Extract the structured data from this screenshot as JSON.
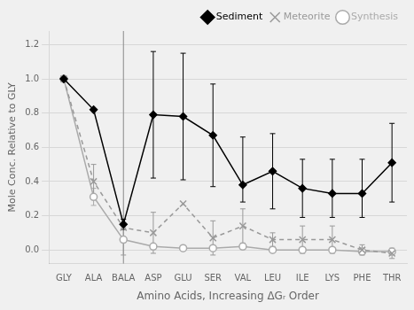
{
  "chart_data": {
    "type": "line",
    "xlabel": "Amino Acids, Increasing ΔGᵣ Order",
    "ylabel": "Mole Conc. Relative to GLY",
    "categories": [
      "GLY",
      "ALA",
      "BALA",
      "ASP",
      "GLU",
      "SER",
      "VAL",
      "LEU",
      "ILE",
      "LYS",
      "PHE",
      "THR"
    ],
    "series": [
      {
        "name": "Sediment",
        "color": "#000000",
        "marker": "diamond",
        "line_style": "solid",
        "values": [
          1.0,
          0.82,
          0.15,
          0.79,
          0.78,
          0.67,
          0.38,
          0.46,
          0.36,
          0.33,
          0.33,
          0.51
        ],
        "error_minus": [
          0.0,
          0.0,
          0.03,
          0.37,
          0.37,
          0.3,
          0.1,
          0.22,
          0.17,
          0.14,
          0.14,
          0.23
        ],
        "error_plus": [
          0.0,
          0.0,
          0.03,
          0.37,
          0.37,
          0.3,
          0.28,
          0.22,
          0.17,
          0.2,
          0.2,
          0.23
        ]
      },
      {
        "name": "Meteorite",
        "color": "#999999",
        "marker": "x",
        "line_style": "dashed",
        "values": [
          1.0,
          0.4,
          0.13,
          0.1,
          0.27,
          0.07,
          0.14,
          0.06,
          0.06,
          0.06,
          0.0,
          -0.02
        ],
        "error_minus": [
          0.0,
          0.1,
          0.16,
          0.12,
          0.0,
          0.1,
          0.1,
          0.04,
          0.08,
          0.08,
          0.03,
          0.03
        ],
        "error_plus": [
          0.0,
          0.1,
          0.0,
          0.12,
          0.0,
          0.1,
          0.1,
          0.04,
          0.08,
          0.08,
          0.03,
          0.03
        ]
      },
      {
        "name": "Synthesis",
        "color": "#aaaaaa",
        "marker": "circle",
        "line_style": "solid",
        "values": [
          1.0,
          0.31,
          0.06,
          0.02,
          0.01,
          0.01,
          0.02,
          0.0,
          0.0,
          0.0,
          -0.01,
          -0.01
        ],
        "error_minus": [
          0.0,
          0.05,
          0.0,
          0.0,
          0.0,
          0.0,
          0.0,
          0.0,
          0.0,
          0.0,
          0.0,
          0.0
        ],
        "error_plus": [
          0.0,
          0.05,
          0.0,
          0.0,
          0.0,
          0.0,
          0.0,
          0.0,
          0.0,
          0.0,
          0.0,
          0.0
        ]
      }
    ],
    "ylim": [
      -0.08,
      1.28
    ],
    "yticks": [
      {
        "value": 0,
        "label": "0.0"
      },
      0.2,
      0.4,
      0.6,
      0.8,
      {
        "value": 1,
        "label": "1.0"
      },
      1.2
    ],
    "annotations": [
      {
        "type": "vertical_line",
        "x": "BALA"
      }
    ],
    "grid": "y",
    "legend": "upper right"
  }
}
